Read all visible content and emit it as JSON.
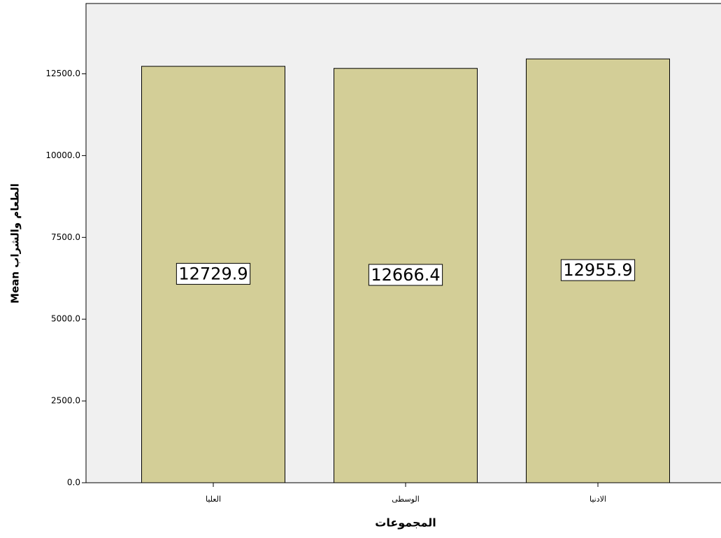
{
  "chart_data": {
    "type": "bar",
    "x_label": "المجموعات",
    "y_label": "Mean الطعام والشراب",
    "categories": [
      "العليا",
      "الوسطى",
      "الادنيا"
    ],
    "values": [
      12729.9,
      12666.4,
      12955.9
    ],
    "color": "#d3ce97",
    "ylim": [
      0,
      14650
    ],
    "yticks": [
      {
        "value": 0,
        "label": "0.0"
      },
      {
        "value": 2500,
        "label": "2500.0"
      },
      {
        "value": 5000,
        "label": "5000.0"
      },
      {
        "value": 7500,
        "label": "7500.0"
      },
      {
        "value": 10000,
        "label": "10000.0"
      },
      {
        "value": 12500,
        "label": "12500.0"
      }
    ]
  }
}
